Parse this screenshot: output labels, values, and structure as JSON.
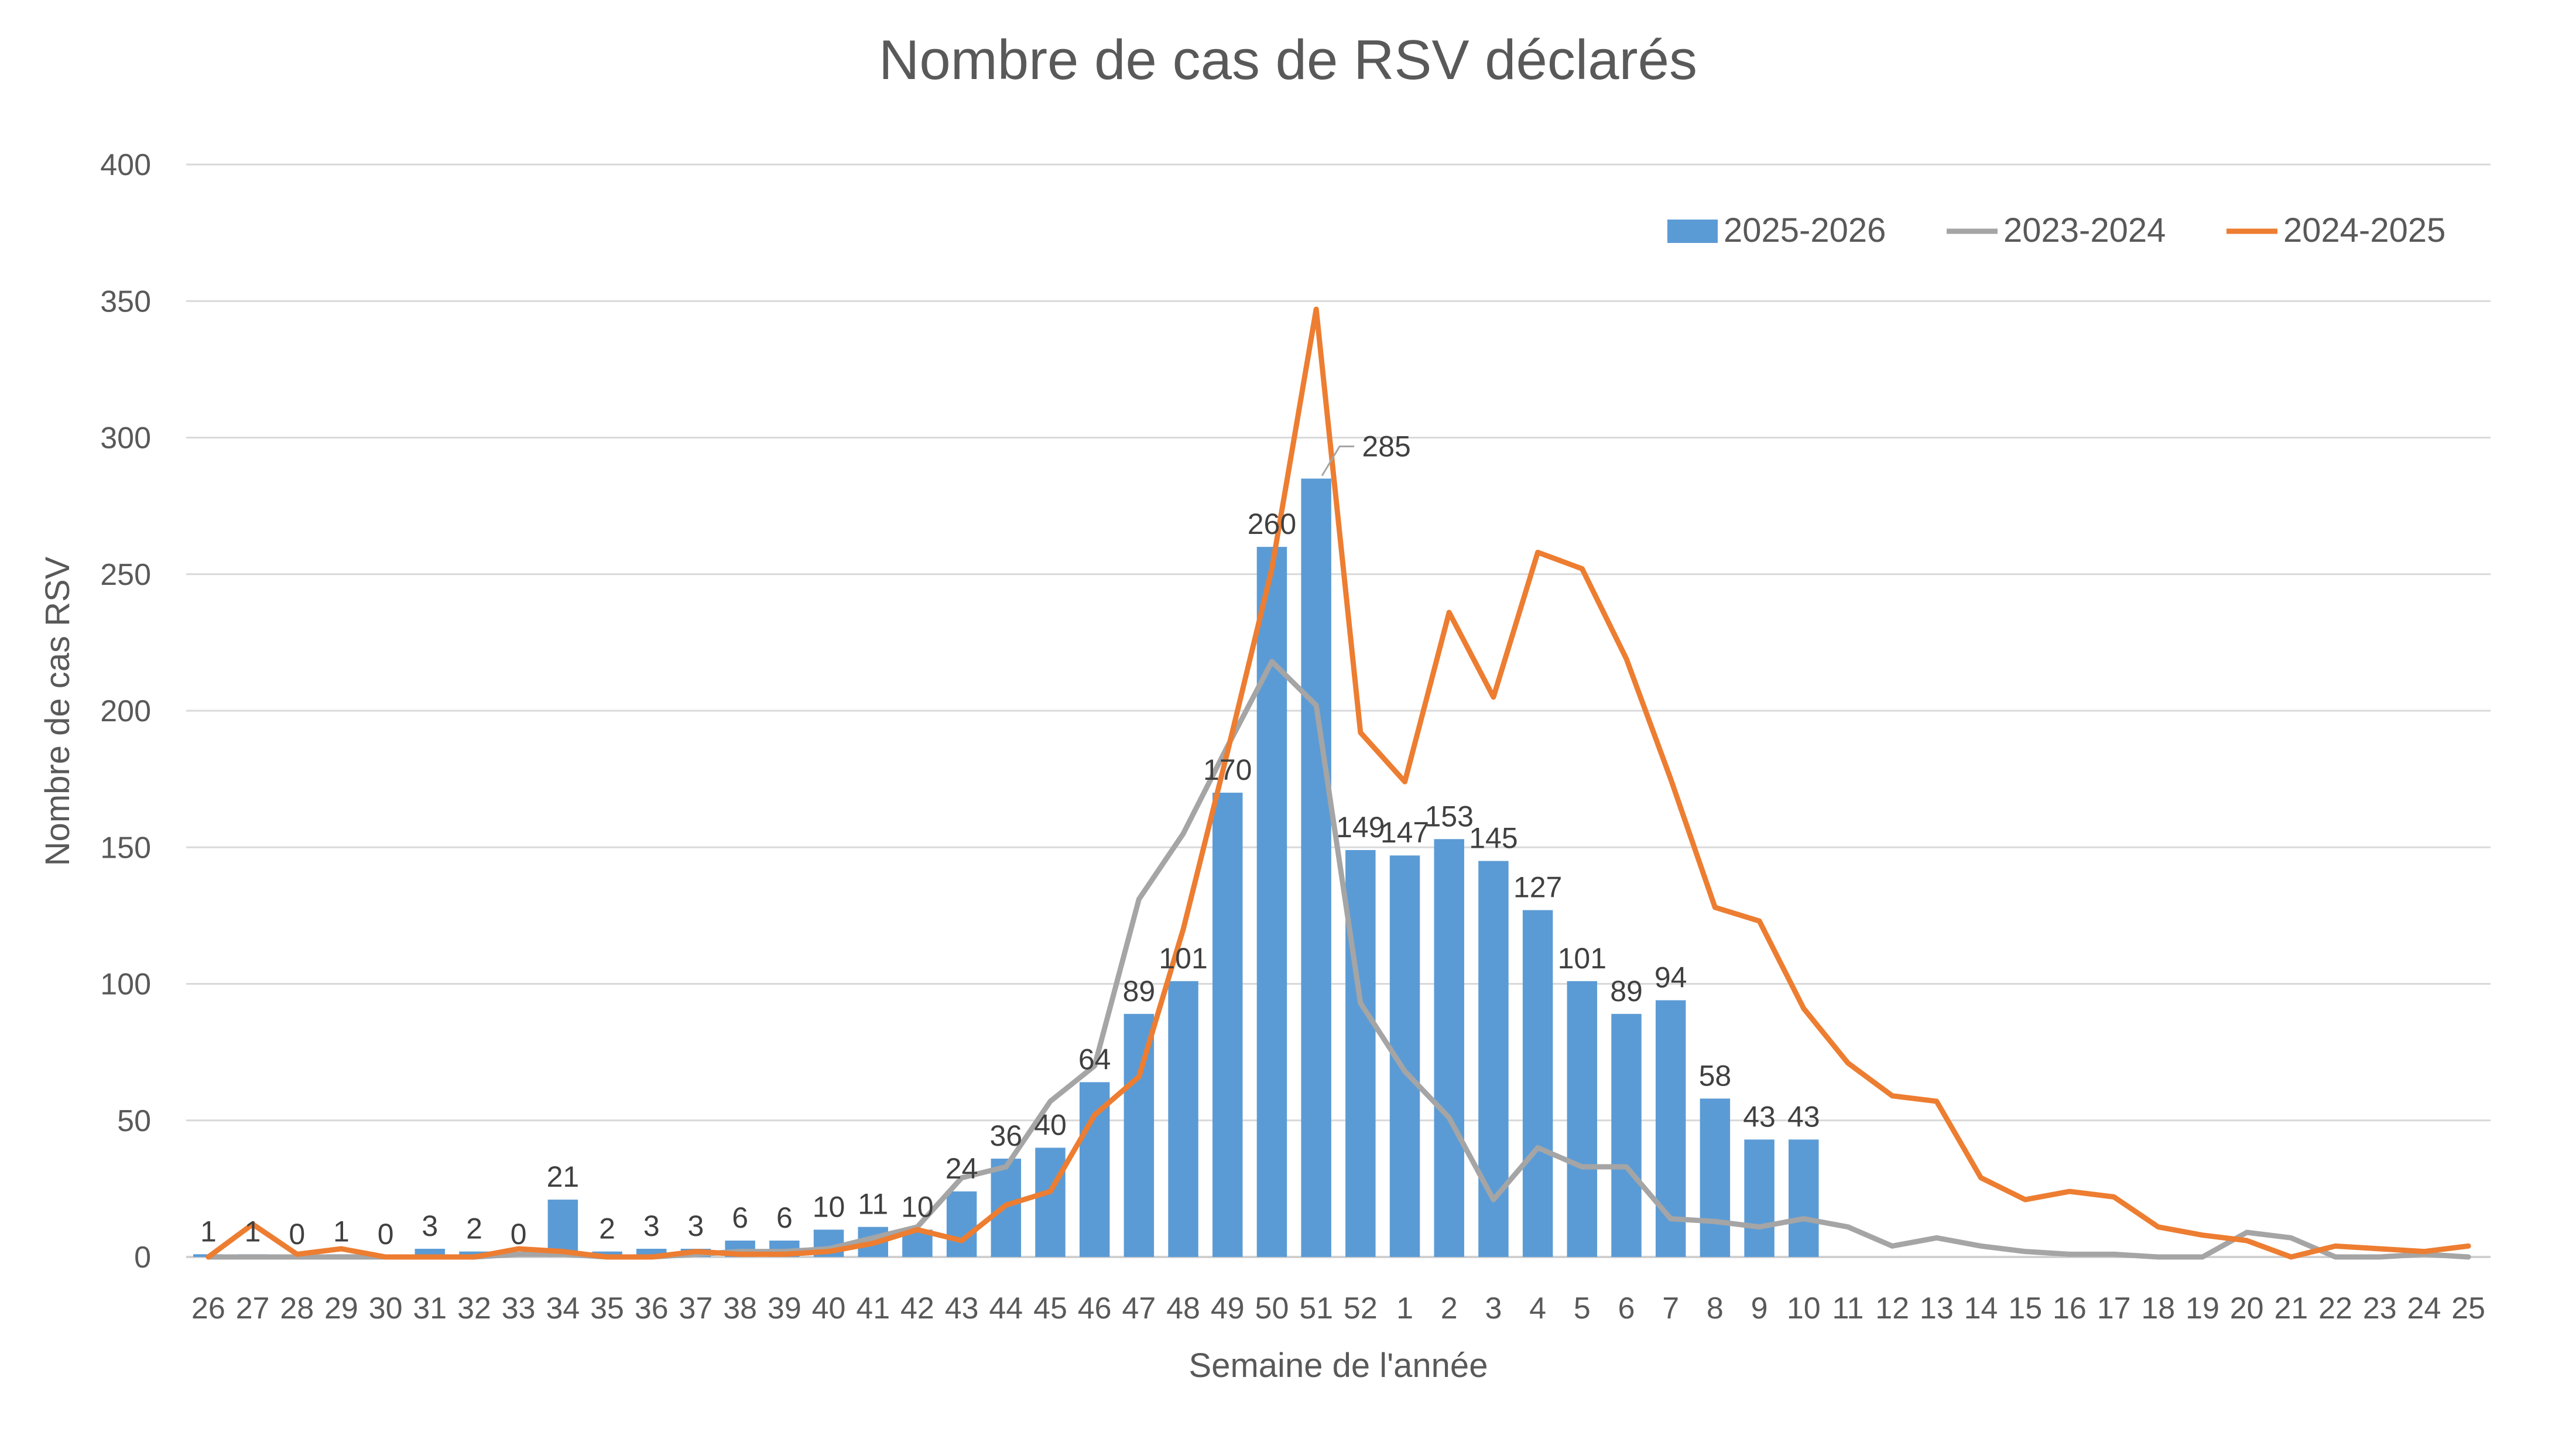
{
  "chart_data": {
    "type": "bar+line",
    "title": "Nombre de cas de RSV déclarés",
    "xlabel": "Semaine de l'année",
    "ylabel": "Nombre de cas RSV",
    "ylim": [
      0,
      400
    ],
    "yticks": [
      0,
      50,
      100,
      150,
      200,
      250,
      300,
      350,
      400
    ],
    "grid": true,
    "legend_position": "top-right",
    "categories": [
      "26",
      "27",
      "28",
      "29",
      "30",
      "31",
      "32",
      "33",
      "34",
      "35",
      "36",
      "37",
      "38",
      "39",
      "40",
      "41",
      "42",
      "43",
      "44",
      "45",
      "46",
      "47",
      "48",
      "49",
      "50",
      "51",
      "52",
      "1",
      "2",
      "3",
      "4",
      "5",
      "6",
      "7",
      "8",
      "9",
      "10",
      "11",
      "12",
      "13",
      "14",
      "15",
      "16",
      "17",
      "18",
      "19",
      "20",
      "21",
      "22",
      "23",
      "24",
      "25"
    ],
    "series": [
      {
        "name": "2025-2026",
        "type": "bar",
        "color": "#5b9bd5",
        "data_labels": true,
        "values": [
          1,
          1,
          0,
          1,
          0,
          3,
          2,
          0,
          21,
          2,
          3,
          3,
          6,
          6,
          10,
          11,
          10,
          24,
          36,
          40,
          64,
          89,
          101,
          170,
          260,
          285,
          149,
          147,
          153,
          145,
          127,
          101,
          89,
          94,
          58,
          43,
          43,
          null,
          null,
          null,
          null,
          null,
          null,
          null,
          null,
          null,
          null,
          null,
          null,
          null,
          null,
          null
        ]
      },
      {
        "name": "2023-2024",
        "type": "line",
        "color": "#a5a5a5",
        "values": [
          0,
          0,
          0,
          0,
          0,
          0,
          0,
          1,
          1,
          0,
          0,
          1,
          2,
          2,
          3,
          7,
          11,
          29,
          33,
          57,
          70,
          131,
          155,
          187,
          218,
          202,
          93,
          68,
          51,
          21,
          40,
          33,
          33,
          14,
          13,
          11,
          14,
          11,
          4,
          7,
          4,
          2,
          1,
          1,
          0,
          0,
          9,
          7,
          0,
          0,
          1,
          0
        ]
      },
      {
        "name": "2024-2025",
        "type": "line",
        "color": "#ed7d31",
        "values": [
          0,
          12,
          1,
          3,
          0,
          0,
          0,
          3,
          2,
          0,
          0,
          2,
          1,
          1,
          2,
          5,
          10,
          6,
          19,
          24,
          52,
          66,
          120,
          185,
          252,
          347,
          192,
          174,
          236,
          205,
          258,
          252,
          219,
          175,
          128,
          123,
          91,
          71,
          59,
          57,
          29,
          21,
          24,
          22,
          11,
          8,
          6,
          0,
          4,
          3,
          2,
          4
        ]
      }
    ]
  }
}
